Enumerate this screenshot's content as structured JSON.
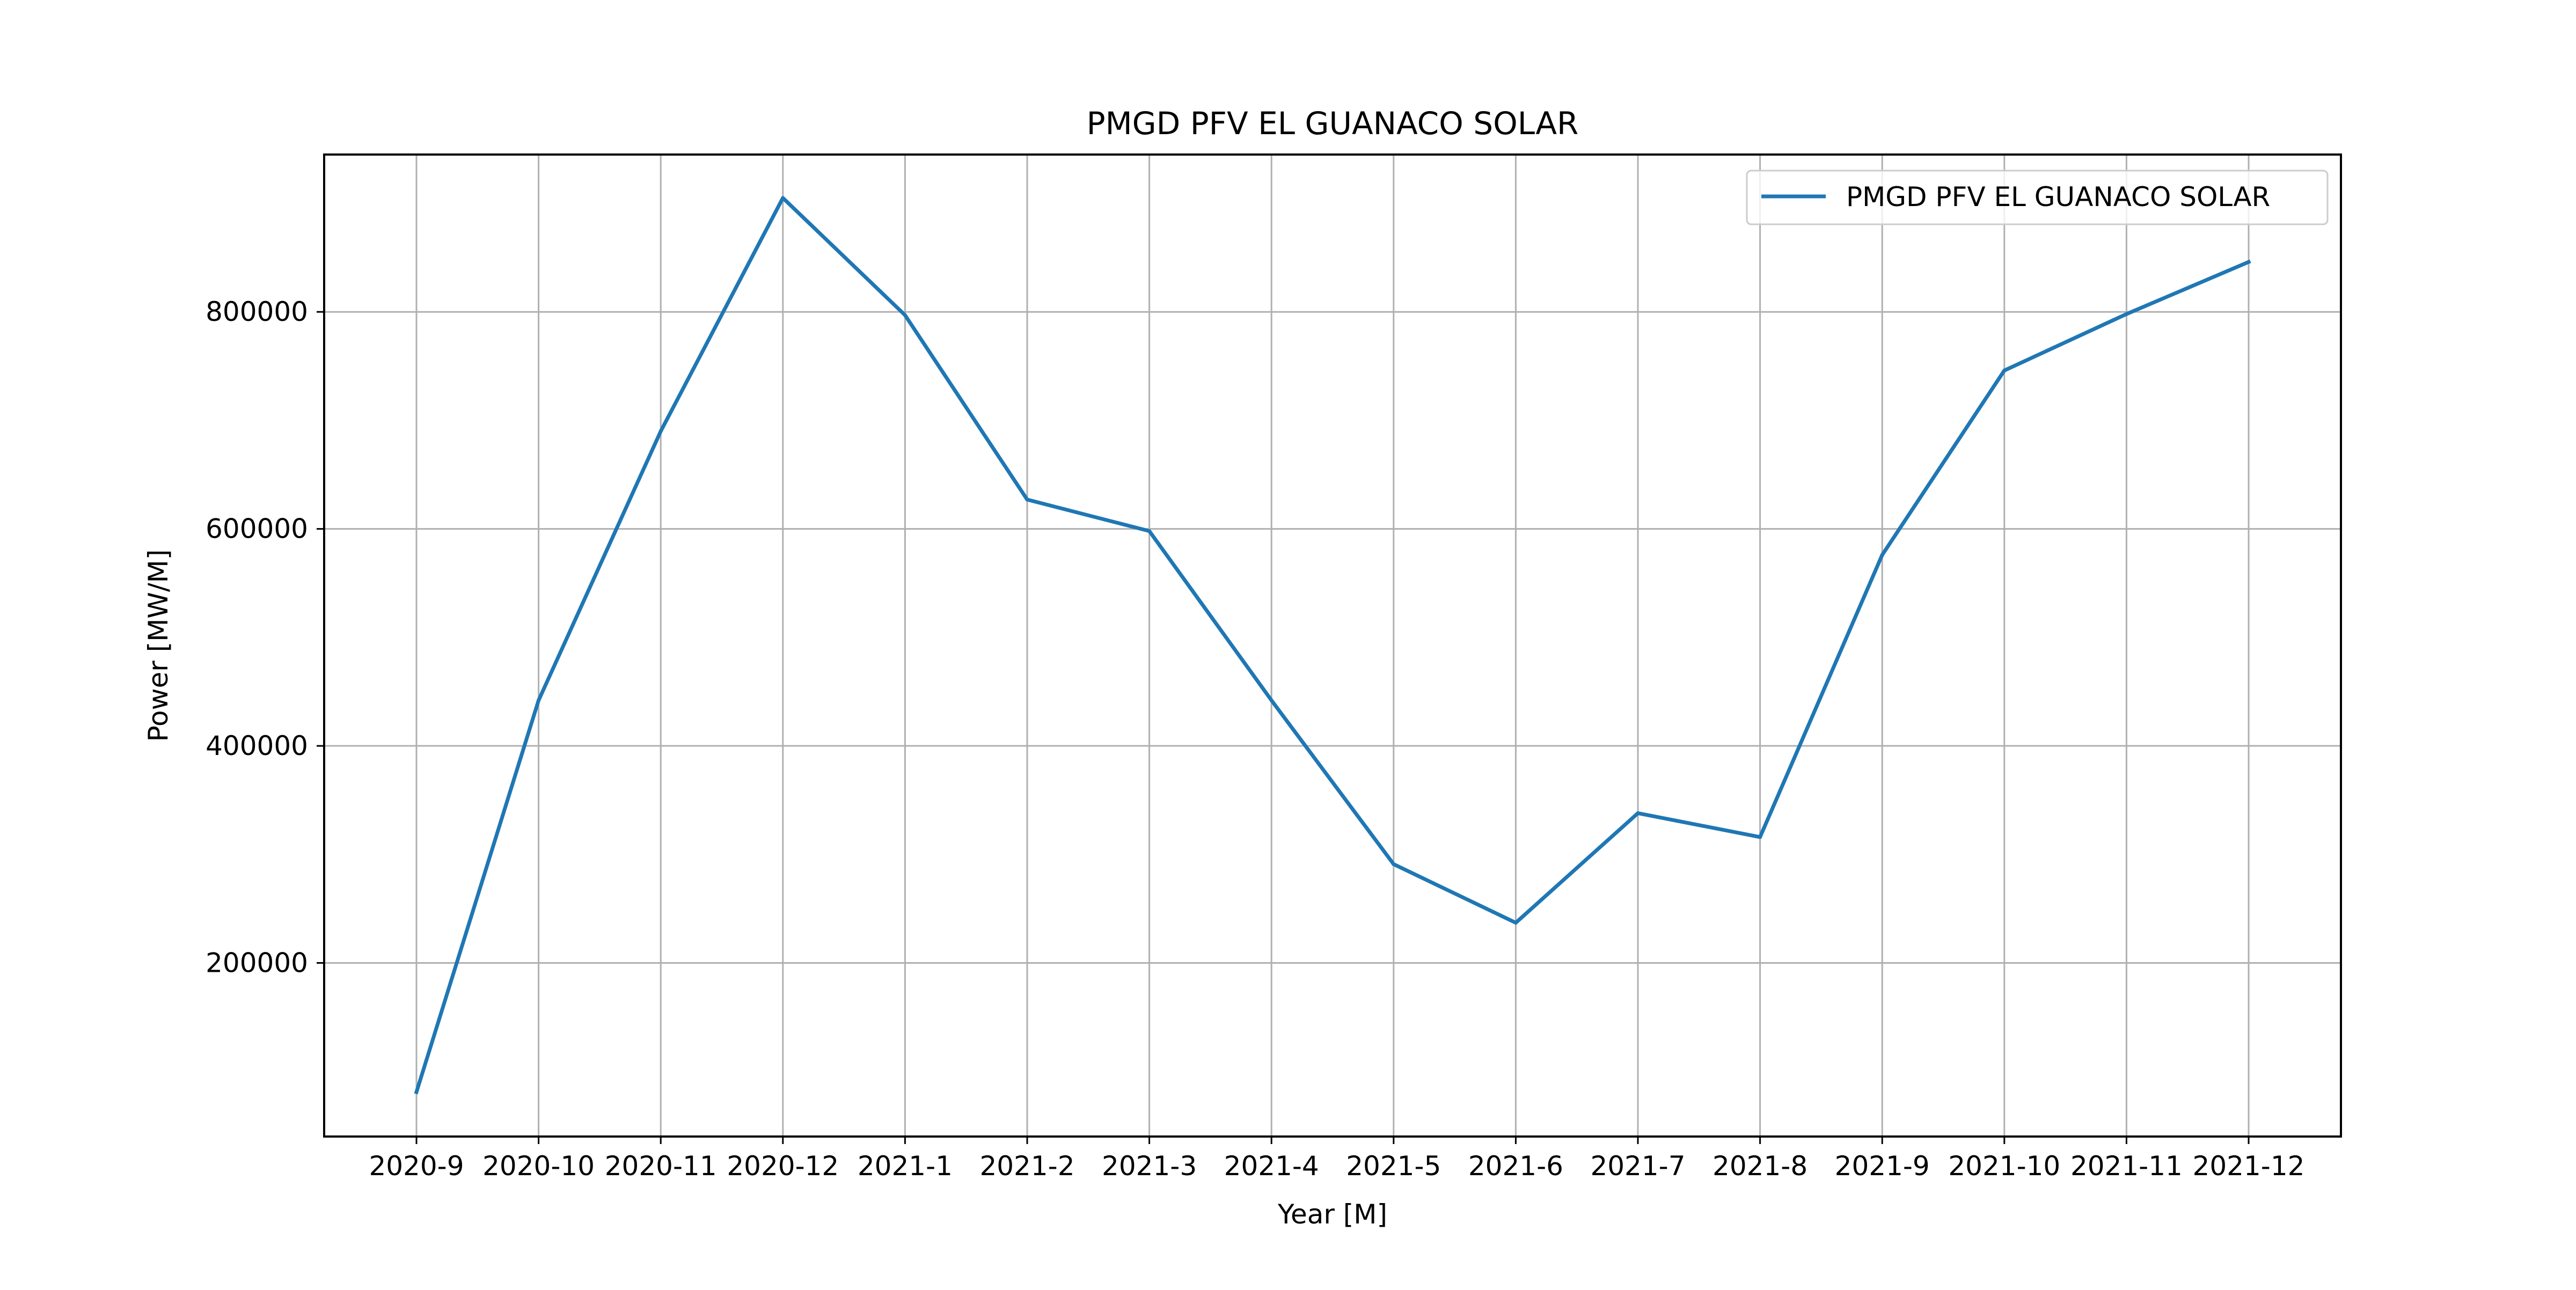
{
  "chart_data": {
    "type": "line",
    "title": "PMGD PFV EL GUANACO SOLAR",
    "xlabel": "Year [M]",
    "ylabel": "Power [MW/M]",
    "categories": [
      "2020-9",
      "2020-10",
      "2020-11",
      "2020-12",
      "2021-1",
      "2021-2",
      "2021-3",
      "2021-4",
      "2021-5",
      "2021-6",
      "2021-7",
      "2021-8",
      "2021-9",
      "2021-10",
      "2021-11",
      "2021-12"
    ],
    "series": [
      {
        "name": "PMGD PFV EL GUANACO SOLAR",
        "color": "#1f77b4",
        "values": [
          81000,
          442000,
          690000,
          905000,
          797000,
          627000,
          598000,
          442000,
          291000,
          237000,
          338000,
          316000,
          576000,
          746000,
          798000,
          846000
        ]
      }
    ],
    "yticks": [
      200000,
      400000,
      600000,
      800000
    ],
    "ytick_labels": [
      "200000",
      "400000",
      "600000",
      "800000"
    ],
    "ylim": [
      40000,
      945000
    ],
    "grid": true,
    "legend_position": "top-right"
  }
}
